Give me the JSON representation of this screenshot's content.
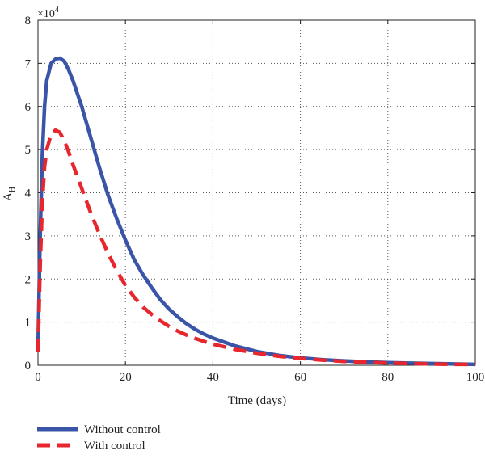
{
  "chart_data": {
    "type": "line",
    "title": "",
    "xlabel": "Time (days)",
    "ylabel_main": "A",
    "ylabel_sub": "H",
    "y_scale_base": "×10",
    "y_scale_exp": "4",
    "xlim": [
      0,
      100
    ],
    "ylim": [
      0,
      8
    ],
    "x_ticks": [
      0,
      20,
      40,
      60,
      80,
      100
    ],
    "y_ticks": [
      0,
      1,
      2,
      3,
      4,
      5,
      6,
      7,
      8
    ],
    "x_tick_labels": [
      "0",
      "20",
      "40",
      "60",
      "80",
      "100"
    ],
    "y_tick_labels": [
      "0",
      "1",
      "2",
      "3",
      "4",
      "5",
      "6",
      "7",
      "8"
    ],
    "grid": true,
    "legend_position": "bottom-left",
    "series": [
      {
        "name": "Without control",
        "color": "#3a55a8",
        "style": "solid",
        "x": [
          0,
          0.5,
          1,
          1.5,
          2,
          3,
          4,
          5,
          6,
          7,
          8,
          10,
          12,
          14,
          16,
          18,
          20,
          22,
          24,
          26,
          28,
          30,
          32,
          34,
          36,
          38,
          40,
          45,
          50,
          55,
          60,
          65,
          70,
          75,
          80,
          85,
          90,
          95,
          100
        ],
        "y": [
          0.4,
          3.0,
          4.9,
          6.0,
          6.6,
          7.0,
          7.1,
          7.12,
          7.05,
          6.85,
          6.6,
          6.0,
          5.3,
          4.6,
          3.95,
          3.4,
          2.9,
          2.45,
          2.1,
          1.8,
          1.52,
          1.3,
          1.12,
          0.96,
          0.83,
          0.72,
          0.63,
          0.45,
          0.32,
          0.23,
          0.17,
          0.13,
          0.1,
          0.08,
          0.06,
          0.05,
          0.04,
          0.03,
          0.02
        ]
      },
      {
        "name": "With control",
        "color": "#e8262d",
        "style": "dashed",
        "x": [
          0,
          0.5,
          1,
          1.5,
          2,
          3,
          4,
          5,
          6,
          7,
          8,
          10,
          12,
          14,
          16,
          18,
          20,
          22,
          24,
          26,
          28,
          30,
          32,
          34,
          36,
          38,
          40,
          45,
          50,
          55,
          60,
          65,
          70,
          75,
          80,
          85,
          90,
          95,
          100
        ],
        "y": [
          0.3,
          2.3,
          3.8,
          4.6,
          5.0,
          5.35,
          5.45,
          5.4,
          5.2,
          4.95,
          4.65,
          4.1,
          3.55,
          3.05,
          2.6,
          2.2,
          1.85,
          1.58,
          1.35,
          1.18,
          1.03,
          0.9,
          0.79,
          0.7,
          0.62,
          0.55,
          0.49,
          0.37,
          0.28,
          0.21,
          0.16,
          0.12,
          0.09,
          0.07,
          0.05,
          0.04,
          0.03,
          0.02,
          0.02
        ]
      }
    ]
  }
}
